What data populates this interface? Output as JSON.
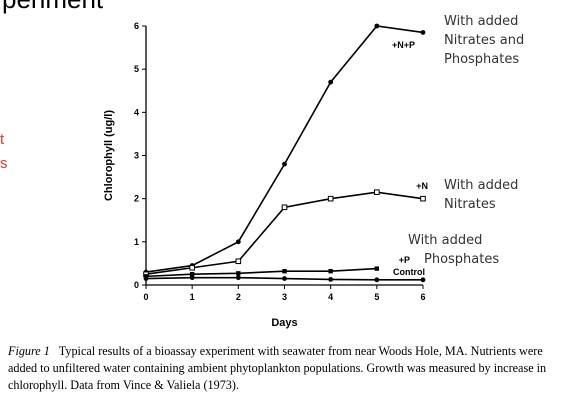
{
  "slide": {
    "title_fragment": "periment",
    "left_fragment_lines": [
      "t",
      "s"
    ]
  },
  "annotations": [
    {
      "id": "np",
      "lines": [
        "With added",
        "Nitrates and",
        "Phosphates"
      ]
    },
    {
      "id": "n",
      "lines": [
        "With added",
        "Nitrates"
      ]
    },
    {
      "id": "p",
      "lines": [
        "With added",
        "Phosphates"
      ]
    }
  ],
  "caption": {
    "figure_label": "Figure 1",
    "text": "Typical results of a bioassay experiment with seawater from near Woods Hole, MA. Nutrients were added to unfiltered water containing ambient phytoplankton populations. Growth was measured by increase in chlorophyll. Data from Vince & Valiela (1973)."
  },
  "chart_data": {
    "type": "line",
    "title": "",
    "xlabel": "Days",
    "ylabel": "Chlorophyll (ug/l)",
    "xlim": [
      0,
      6
    ],
    "ylim": [
      0,
      6
    ],
    "x_ticks": [
      0,
      1,
      2,
      3,
      4,
      5,
      6
    ],
    "y_ticks": [
      0,
      1,
      2,
      3,
      4,
      5,
      6
    ],
    "grid": false,
    "series": [
      {
        "name": "+N+P",
        "marker": "filled-circle",
        "x": [
          0,
          1,
          2,
          3,
          4,
          5,
          6
        ],
        "y": [
          0.3,
          0.45,
          1.0,
          2.8,
          4.7,
          6.0,
          5.85
        ]
      },
      {
        "name": "+N",
        "marker": "open-square",
        "x": [
          0,
          1,
          2,
          3,
          4,
          5,
          6
        ],
        "y": [
          0.25,
          0.4,
          0.55,
          1.8,
          2.0,
          2.15,
          2.0
        ]
      },
      {
        "name": "+P",
        "marker": "filled-square",
        "x": [
          0,
          1,
          2,
          3,
          4,
          5
        ],
        "y": [
          0.2,
          0.25,
          0.27,
          0.32,
          0.32,
          0.38
        ]
      },
      {
        "name": "Control",
        "marker": "filled-circle",
        "x": [
          0,
          1,
          2,
          3,
          4,
          5,
          6
        ],
        "y": [
          0.15,
          0.17,
          0.17,
          0.15,
          0.13,
          0.12,
          0.12
        ]
      }
    ]
  }
}
